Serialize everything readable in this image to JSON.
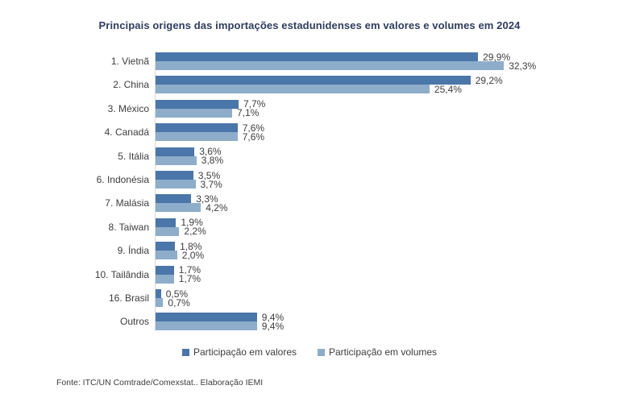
{
  "title": "Principais origens das importações estadunidenses em valores e volumes em 2024",
  "footer": {
    "source": "Fonte: ITC/UN Comtrade/Comexstat.. Elaboração IEMI"
  },
  "colors": {
    "valores_bar": "#4b76a9",
    "volumes_bar": "#8eadcb",
    "title_text": "#2e3c5e",
    "label_text": "#3d3d3d",
    "axis_line": "#d9d9d9"
  },
  "chart_data": {
    "type": "bar",
    "orientation": "horizontal",
    "title": "Principais origens das importações estadunidenses em valores e volumes em 2024",
    "categories": [
      "1. Vietnã",
      "2. China",
      "3. México",
      "4. Canadá",
      "5. Itália",
      "6. Indonésia",
      "7. Malásia",
      "8. Taiwan",
      "9. Índia",
      "10. Tailândia",
      "16. Brasil",
      "Outros"
    ],
    "series": [
      {
        "name": "Participação em valores",
        "color": "#4b76a9",
        "values": [
          29.9,
          29.2,
          7.7,
          7.6,
          3.6,
          3.5,
          3.3,
          1.9,
          1.8,
          1.7,
          0.5,
          9.4
        ],
        "labels": [
          "29,9%",
          "29,2%",
          "7,7%",
          "7,6%",
          "3,6%",
          "3,5%",
          "3,3%",
          "1,9%",
          "1,8%",
          "1,7%",
          "0,5%",
          "9,4%"
        ]
      },
      {
        "name": "Participação em volumes",
        "color": "#8eadcb",
        "values": [
          32.3,
          25.4,
          7.1,
          7.6,
          3.8,
          3.7,
          4.2,
          2.2,
          2.0,
          1.7,
          0.7,
          9.4
        ],
        "labels": [
          "32,3%",
          "25,4%",
          "7,1%",
          "7,6%",
          "3,8%",
          "3,7%",
          "4,2%",
          "2,2%",
          "2,0%",
          "1,7%",
          "0,7%",
          "9,4%"
        ]
      }
    ],
    "value_suffix": "%",
    "decimal_separator": ",",
    "xlim": [
      0,
      35
    ],
    "grid": false,
    "data_labels": true,
    "legend_position": "bottom"
  }
}
